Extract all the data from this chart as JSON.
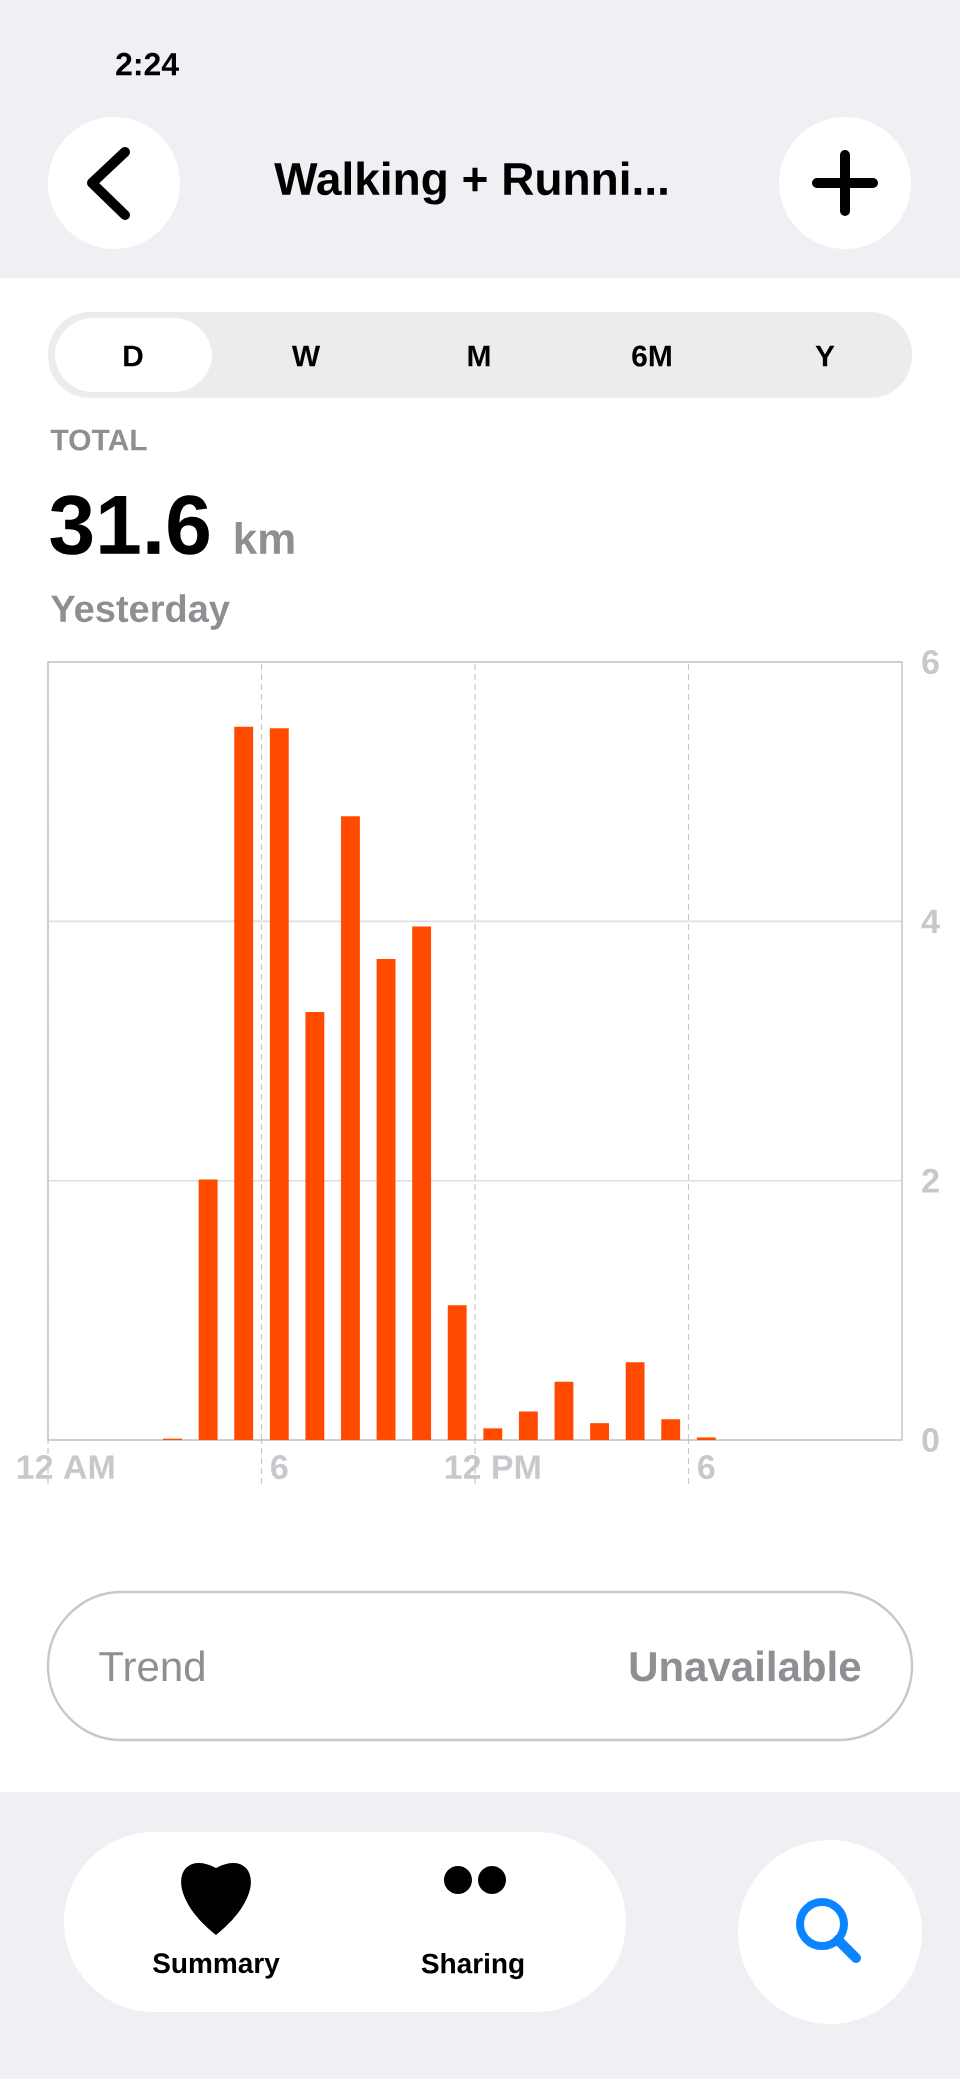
{
  "chart_data": {
    "type": "bar",
    "title": "Walking + Runni...",
    "categories": [
      "12 AM",
      null,
      null,
      null,
      null,
      null,
      "6",
      null,
      null,
      null,
      null,
      null,
      "12 PM",
      null,
      null,
      null,
      null,
      null,
      "6",
      null,
      null,
      null,
      null,
      null
    ],
    "values": [
      null,
      null,
      null,
      0.01,
      2.01,
      5.5,
      5.49,
      3.3,
      4.81,
      3.71,
      3.96,
      1.04,
      0.09,
      0.22,
      0.45,
      0.13,
      0.6,
      0.16,
      0.02,
      null,
      null,
      null,
      null,
      null
    ],
    "color": "#ff4a00",
    "ylim": [
      0,
      6
    ],
    "yticks": [
      0,
      2,
      4,
      6
    ],
    "grid": true,
    "annotations": [
      "2:24",
      "D",
      "W",
      "M",
      "6M",
      "Y",
      "TOTAL",
      "31.6",
      "km",
      "Yesterday",
      "Trend",
      "Unavailable",
      "Summary",
      "Sharing"
    ]
  }
}
